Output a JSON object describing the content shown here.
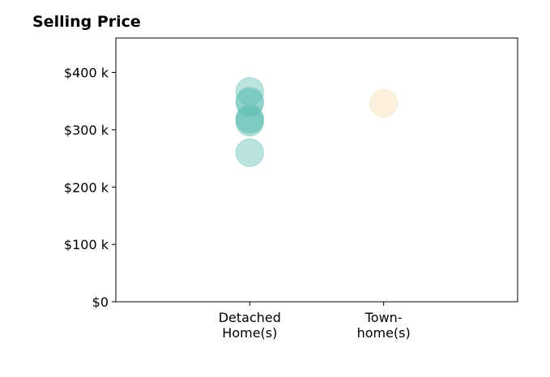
{
  "chart_data": {
    "type": "scatter",
    "title": "Selling Price",
    "xlabel": "",
    "ylabel": "",
    "categories": [
      [
        "Detached",
        "Home(s)"
      ],
      [
        "Town-",
        "home(s)"
      ]
    ],
    "ylim": [
      0,
      460000
    ],
    "yticks": [
      {
        "value": 0,
        "label": "$0"
      },
      {
        "value": 100000,
        "label": "$100 k"
      },
      {
        "value": 200000,
        "label": "$200 k"
      },
      {
        "value": 300000,
        "label": "$300 k"
      },
      {
        "value": 400000,
        "label": "$400 k"
      }
    ],
    "grid": false,
    "series": [
      {
        "category_index": 0,
        "color": "#5fbfb3",
        "values": [
          367000,
          350000,
          347000,
          320000,
          317000,
          313000,
          260000
        ]
      },
      {
        "category_index": 1,
        "color": "#f5deb0",
        "values": [
          346000
        ]
      }
    ]
  }
}
